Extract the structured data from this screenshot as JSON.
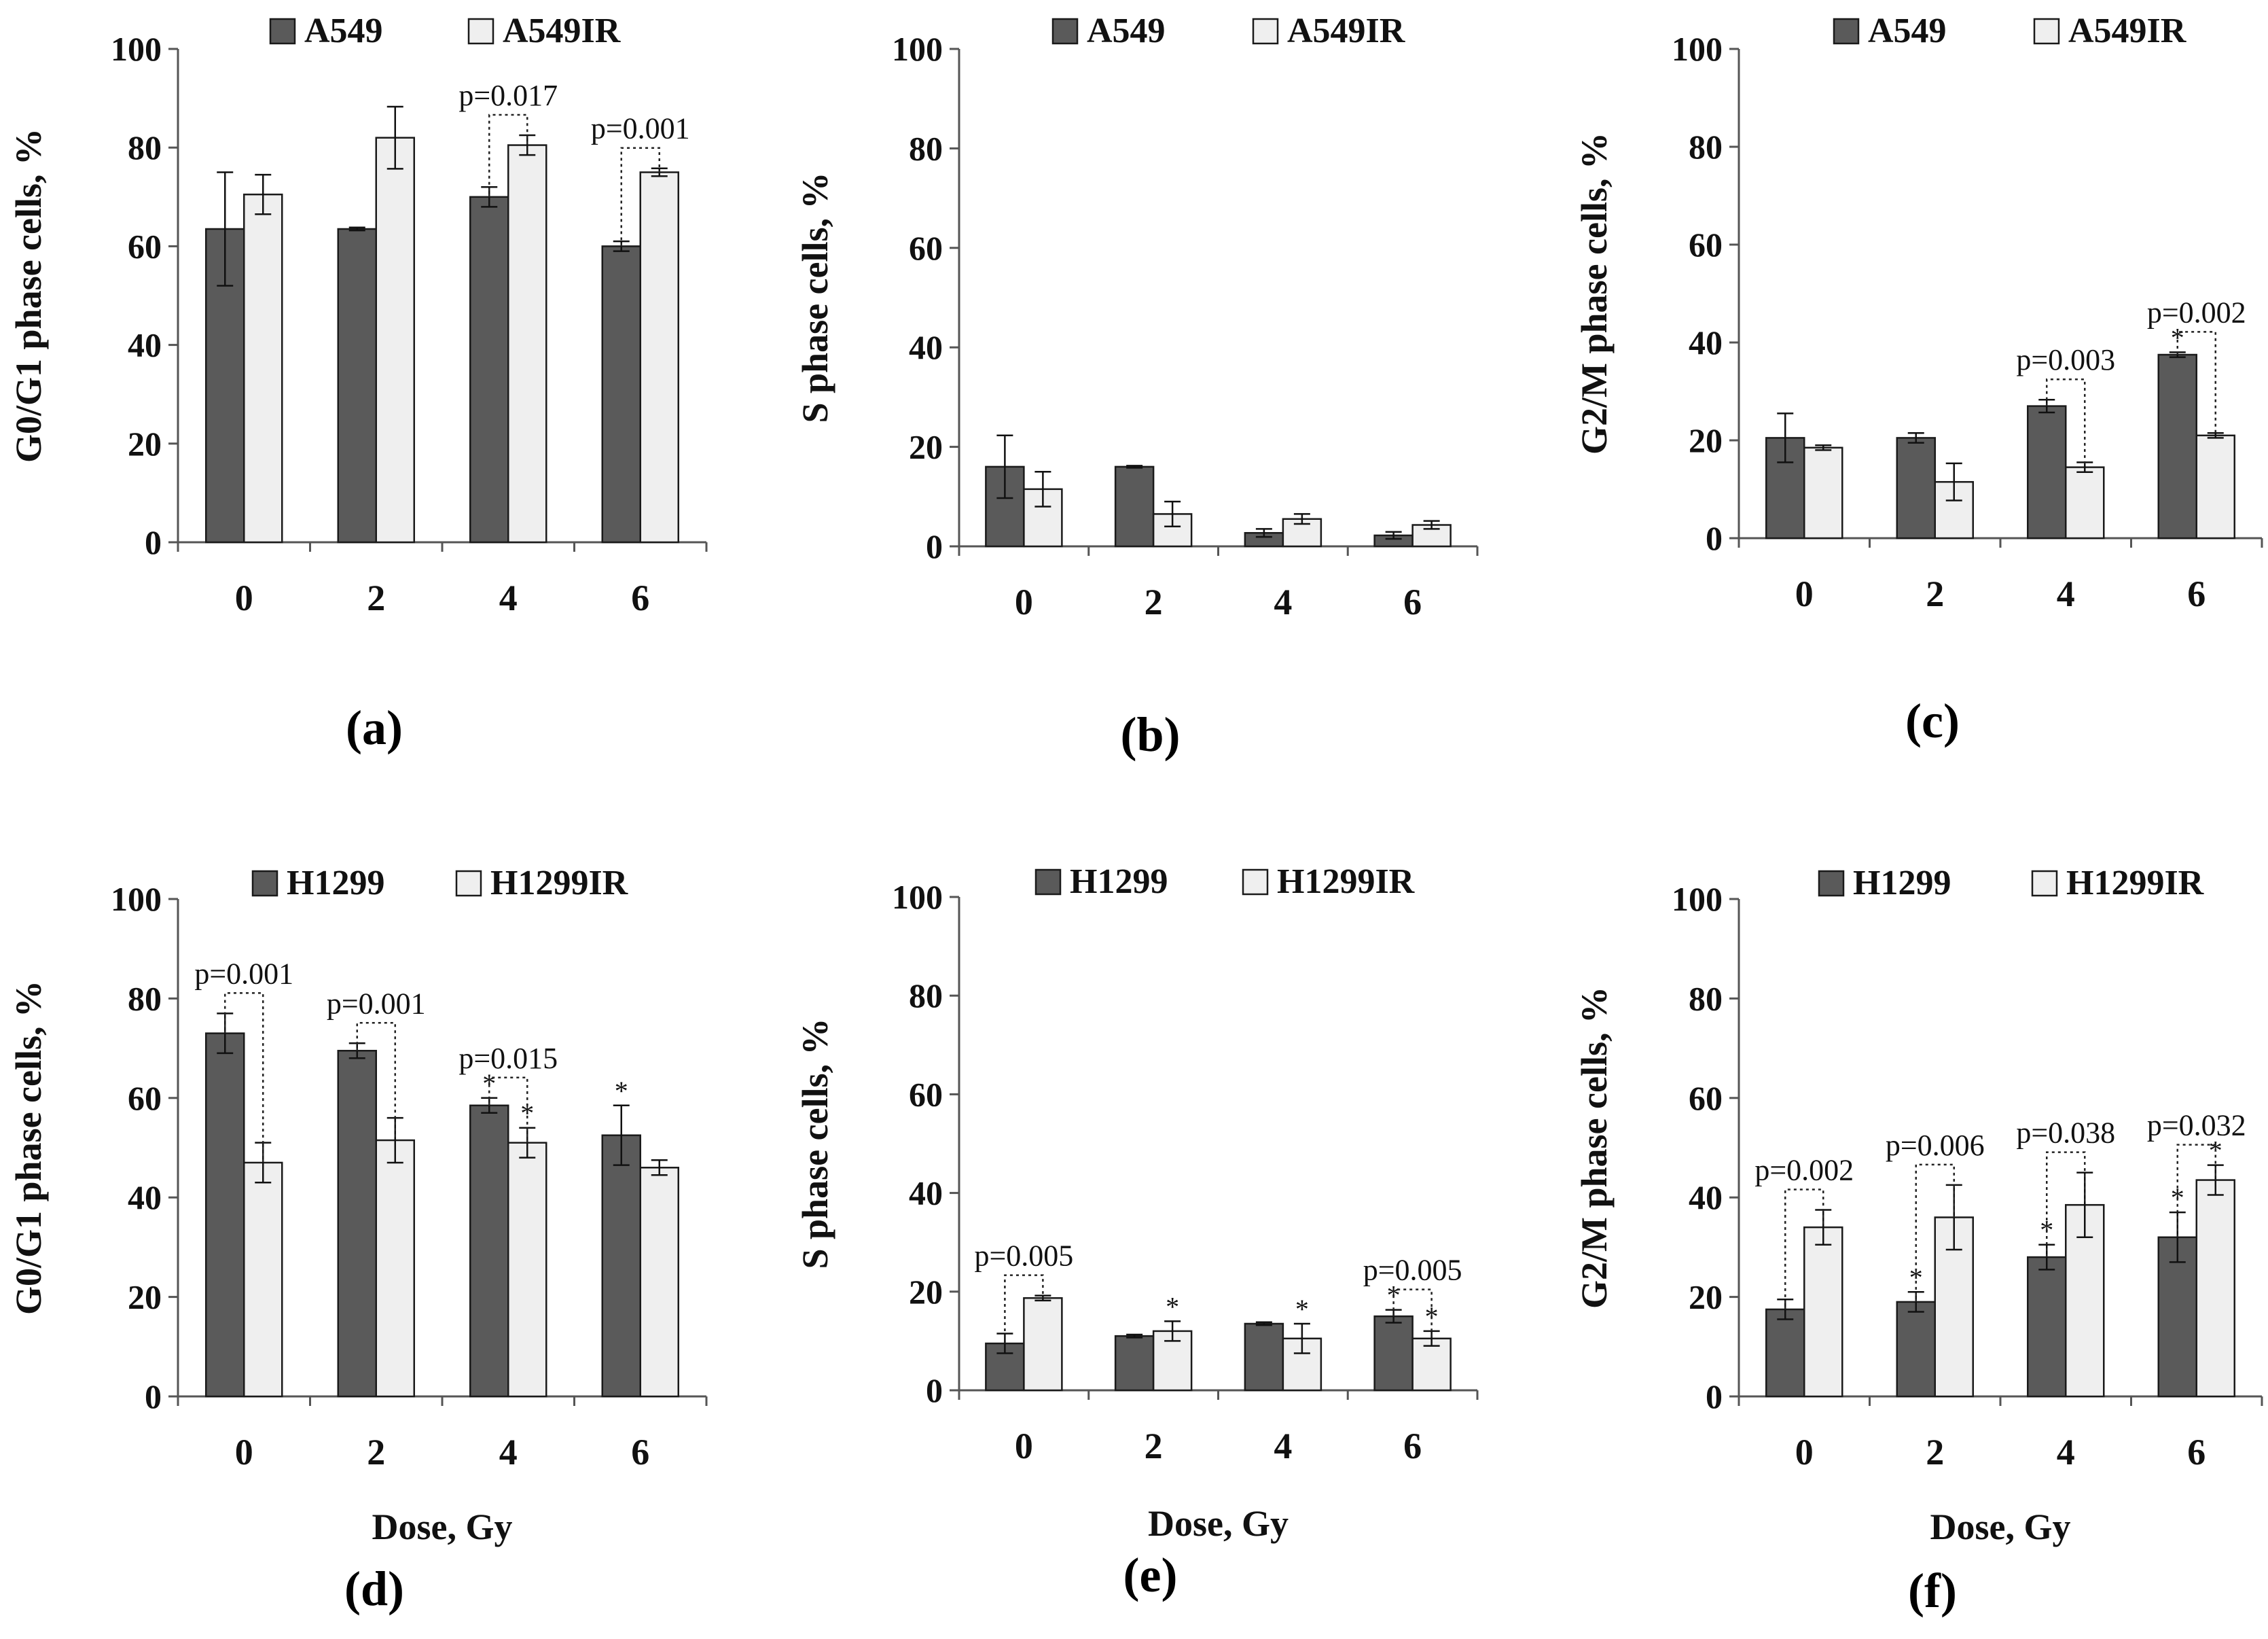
{
  "colors": {
    "dark_bar": "#5a5a5a",
    "light_bar": "#efefef",
    "stroke": "#1a1a1a"
  },
  "chart_data": [
    {
      "id": "a",
      "type": "bar",
      "panel_label": "(a)",
      "ylabel": "G0/G1 phase cells, %",
      "xlabel": "",
      "ylim": [
        0,
        100
      ],
      "yticks": [
        0,
        20,
        40,
        60,
        80,
        100
      ],
      "categories": [
        "0",
        "2",
        "4",
        "6"
      ],
      "legend_loc": "top",
      "series": [
        {
          "name": "A549",
          "values": [
            63.5,
            63.5,
            70,
            60
          ],
          "errors": [
            11.5,
            0.3,
            2,
            1
          ],
          "stars": [
            false,
            false,
            false,
            false
          ]
        },
        {
          "name": "A549IR",
          "values": [
            70.5,
            82,
            80.5,
            75
          ],
          "errors": [
            4,
            6.3,
            2,
            0.8
          ],
          "stars": [
            false,
            false,
            false,
            false
          ]
        }
      ],
      "pvalues": [
        {
          "index": 2,
          "label": "p=0.017"
        },
        {
          "index": 3,
          "label": "p=0.001"
        }
      ]
    },
    {
      "id": "b",
      "type": "bar",
      "panel_label": "(b)",
      "ylabel": "S phase cells, %",
      "xlabel": "",
      "ylim": [
        0,
        100
      ],
      "yticks": [
        0,
        20,
        40,
        60,
        80,
        100
      ],
      "categories": [
        "0",
        "2",
        "4",
        "6"
      ],
      "legend_loc": "top",
      "series": [
        {
          "name": "A549",
          "values": [
            16,
            16,
            2.7,
            2.2
          ],
          "errors": [
            6.3,
            0.2,
            0.8,
            0.7
          ],
          "stars": [
            false,
            false,
            false,
            false
          ]
        },
        {
          "name": "A549IR",
          "values": [
            11.5,
            6.5,
            5.5,
            4.3
          ],
          "errors": [
            3.5,
            2.5,
            1,
            0.8
          ],
          "stars": [
            false,
            false,
            false,
            false
          ]
        }
      ],
      "pvalues": []
    },
    {
      "id": "c",
      "type": "bar",
      "panel_label": "(c)",
      "ylabel": "G2/M phase cells, %",
      "xlabel": "",
      "ylim": [
        0,
        100
      ],
      "yticks": [
        0,
        20,
        40,
        60,
        80,
        100
      ],
      "categories": [
        "0",
        "2",
        "4",
        "6"
      ],
      "legend_loc": "top",
      "series": [
        {
          "name": "A549",
          "values": [
            20.5,
            20.5,
            27,
            37.5
          ],
          "errors": [
            5,
            1,
            1.3,
            0.5
          ],
          "stars": [
            false,
            false,
            false,
            true
          ]
        },
        {
          "name": "A549IR",
          "values": [
            18.5,
            11.5,
            14.5,
            21
          ],
          "errors": [
            0.5,
            3.8,
            1,
            0.5
          ],
          "stars": [
            false,
            false,
            false,
            false
          ]
        }
      ],
      "pvalues": [
        {
          "index": 2,
          "label": "p=0.003"
        },
        {
          "index": 3,
          "label": "p=0.002"
        }
      ]
    },
    {
      "id": "d",
      "type": "bar",
      "panel_label": "(d)",
      "ylabel": "G0/G1 phase cells, %",
      "xlabel": "Dose, Gy",
      "ylim": [
        0,
        100
      ],
      "yticks": [
        0,
        20,
        40,
        60,
        80,
        100
      ],
      "categories": [
        "0",
        "2",
        "4",
        "6"
      ],
      "legend_loc": "top",
      "series": [
        {
          "name": "H1299",
          "values": [
            73,
            69.5,
            58.5,
            52.5
          ],
          "errors": [
            4,
            1.5,
            1.5,
            6
          ],
          "stars": [
            false,
            false,
            true,
            true
          ]
        },
        {
          "name": "H1299IR",
          "values": [
            47,
            51.5,
            51,
            46
          ],
          "errors": [
            4,
            4.5,
            3,
            1.5
          ],
          "stars": [
            false,
            false,
            true,
            false
          ]
        }
      ],
      "pvalues": [
        {
          "index": 0,
          "label": "p=0.001"
        },
        {
          "index": 1,
          "label": "p=0.001"
        },
        {
          "index": 2,
          "label": "p=0.015"
        }
      ]
    },
    {
      "id": "e",
      "type": "bar",
      "panel_label": "(e)",
      "ylabel": "S phase cells, %",
      "xlabel": "Dose, Gy",
      "ylim": [
        0,
        100
      ],
      "yticks": [
        0,
        20,
        40,
        60,
        80,
        100
      ],
      "categories": [
        "0",
        "2",
        "4",
        "6"
      ],
      "legend_loc": "top",
      "series": [
        {
          "name": "H1299",
          "values": [
            9.5,
            11,
            13.5,
            15
          ],
          "errors": [
            2,
            0.3,
            0.3,
            1.3
          ],
          "stars": [
            false,
            false,
            false,
            true
          ]
        },
        {
          "name": "H1299IR",
          "values": [
            18.7,
            12,
            10.5,
            10.5
          ],
          "errors": [
            0.5,
            2,
            3,
            1.5
          ],
          "stars": [
            false,
            true,
            true,
            true
          ]
        }
      ],
      "pvalues": [
        {
          "index": 0,
          "label": "p=0.005"
        },
        {
          "index": 3,
          "label": "p=0.005"
        }
      ]
    },
    {
      "id": "f",
      "type": "bar",
      "panel_label": "(f)",
      "ylabel": "G2/M phase cells, %",
      "xlabel": "Dose, Gy",
      "ylim": [
        0,
        100
      ],
      "yticks": [
        0,
        20,
        40,
        60,
        80,
        100
      ],
      "categories": [
        "0",
        "2",
        "4",
        "6"
      ],
      "legend_loc": "top",
      "series": [
        {
          "name": "H1299",
          "values": [
            17.5,
            19,
            28,
            32
          ],
          "errors": [
            2,
            2,
            2.5,
            5
          ],
          "stars": [
            false,
            true,
            true,
            true
          ]
        },
        {
          "name": "H1299IR",
          "values": [
            34,
            36,
            38.5,
            43.5
          ],
          "errors": [
            3.5,
            6.5,
            6.5,
            3
          ],
          "stars": [
            false,
            false,
            false,
            true
          ]
        }
      ],
      "pvalues": [
        {
          "index": 0,
          "label": "p=0.002"
        },
        {
          "index": 1,
          "label": "p=0.006"
        },
        {
          "index": 2,
          "label": "p=0.038"
        },
        {
          "index": 3,
          "label": "p=0.032"
        }
      ]
    }
  ]
}
